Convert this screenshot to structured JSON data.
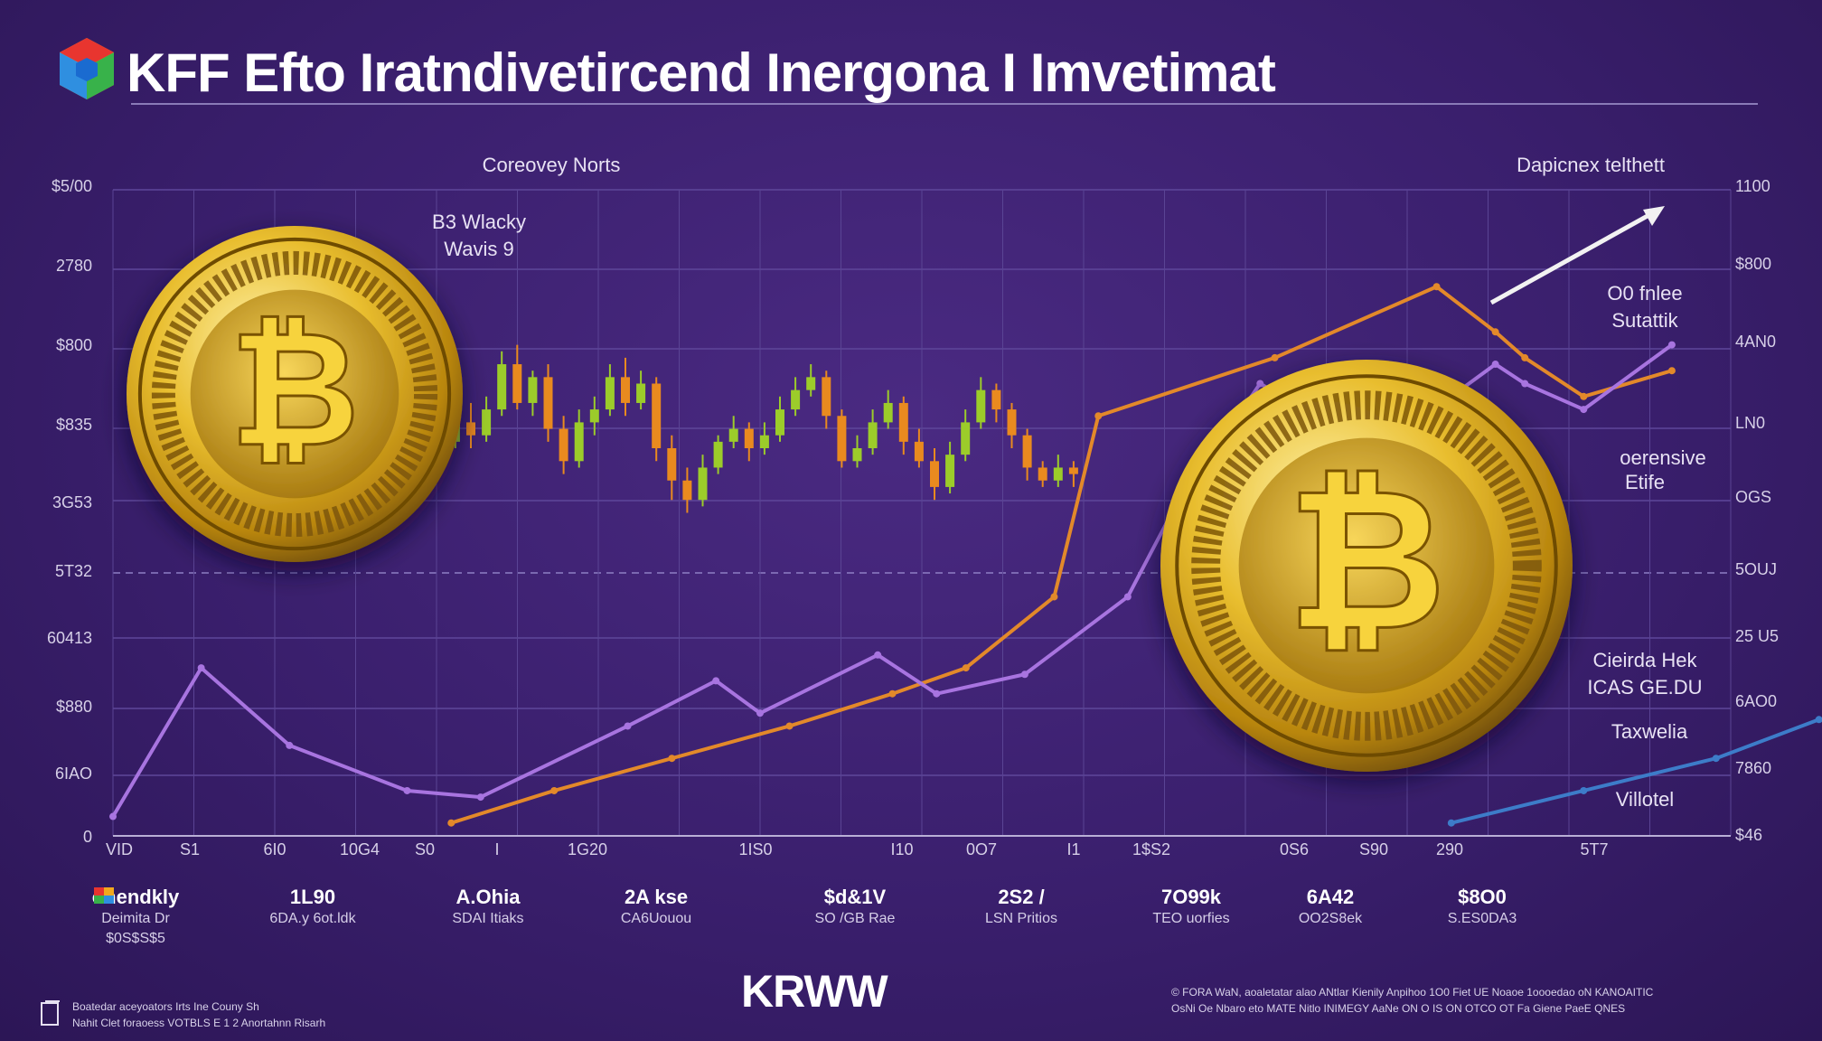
{
  "header": {
    "title": "KFF Efto Iratndivetircend Inergona I Imvetimat"
  },
  "labels": {
    "top_left": "Coreovey Norts",
    "top_right": "Dapicnex telthett",
    "upper_left_a": "B3 Wlacky",
    "upper_left_b": "Wavis 9",
    "right_a1": "O0 fnlee",
    "right_a2": "Sutattik",
    "right_b1": "oerensive",
    "right_b2": "Etife",
    "right_c1": "Cieirda Hek",
    "right_c2": "ICAS GE.DU",
    "right_d": "Taxwelia",
    "right_e": "Villotel"
  },
  "axes": {
    "left_ticks": [
      "$5/00",
      "2780",
      "$800",
      "$835",
      "3G53",
      "5T32",
      "60413",
      "$880",
      "6IAO",
      "0"
    ],
    "right_ticks": [
      "1100",
      "$800",
      "4AN0",
      "LN0",
      "OGS",
      "5OUJ",
      "25 U5",
      "6AO0",
      "7860",
      "$46"
    ],
    "x_ticks": [
      "VID",
      "S1",
      "6I0",
      "10G4",
      "S0",
      "I",
      "1G20",
      "1IS0",
      "I10",
      "0O7",
      "I1",
      "1$S2",
      "0S6",
      "S90",
      "290",
      "5T7"
    ]
  },
  "stats": [
    {
      "value": "onendkly",
      "sub1": "Deimita Dr",
      "sub2": "$0S$S$5"
    },
    {
      "value": "1L90",
      "sub1": "6DA.y 6ot.ldk",
      "sub2": ""
    },
    {
      "value": "A.Ohia",
      "sub1": "SDAI Itiaks",
      "sub2": ""
    },
    {
      "value": "2A kse",
      "sub1": "CA6Uouou",
      "sub2": ""
    },
    {
      "value": "$d&1V",
      "sub1": "SO /GB Rae",
      "sub2": ""
    },
    {
      "value": "2S2 /",
      "sub1": "LSN Pritios",
      "sub2": ""
    },
    {
      "value": "7O99k",
      "sub1": "TEO uorfies",
      "sub2": ""
    },
    {
      "value": "6A42",
      "sub1": "OO2S8ek",
      "sub2": ""
    },
    {
      "value": "$8O0",
      "sub1": "S.ES0DA3",
      "sub2": ""
    }
  ],
  "footer": {
    "brand": "KRWW",
    "left_line1": "Boatedar aceyoators Irts Ine Couny Sh",
    "left_line2": "Nahit Clet foraoess VOTBLS E 1 2 Anortahnn Risarh",
    "right_line1": "© FORA WaN, aoaletatar alao ANtlar Kienily Anpihoo 1O0 Fiet UE Noaoe 1oooedao oN KANOAITIC",
    "right_line2": "OsNi Oe Nbaro eto MATE Nitlo INIMEGY AaNe ON O IS ON OTCO OT Fa Giene PaeE QNES"
  },
  "colors": {
    "background": "#3a1f6d",
    "orange_series": "#e3892a",
    "purple_series": "#a874e0",
    "blue_series": "#3d7cc9",
    "coin_gold": "#e3b82c",
    "candle_up": "#9ccc2a",
    "candle_down": "#e98a1f"
  },
  "chart_data": {
    "type": "line",
    "title": "KFF Efto Iratndivetircend Inergona I Imvetimat",
    "xlabel": "",
    "ylabel": "",
    "ylim": [
      0,
      100
    ],
    "x": [
      0,
      1,
      2,
      3,
      4,
      5,
      6,
      7,
      8,
      9,
      10,
      11,
      12,
      13,
      14,
      15,
      16,
      17,
      18,
      19,
      20,
      21,
      22,
      23,
      24,
      25,
      26,
      27,
      28,
      29,
      30,
      31,
      32,
      33,
      34,
      35,
      36,
      37,
      38,
      39,
      40,
      41,
      42,
      43,
      44,
      45,
      46,
      47,
      48,
      49,
      50,
      51,
      52,
      53,
      54,
      55,
      56,
      57,
      58,
      59,
      60,
      61,
      62,
      63,
      64,
      65,
      66,
      67,
      68,
      69,
      70,
      71,
      72,
      73,
      74,
      75,
      76,
      77,
      78,
      79,
      80,
      81,
      82,
      83,
      84,
      85,
      86,
      87,
      88,
      89,
      90,
      91,
      92,
      93,
      94,
      95,
      96,
      97,
      98,
      99,
      100
    ],
    "series": [
      {
        "name": "",
        "points": [
          [
            23,
            2
          ],
          [
            30,
            7
          ],
          [
            38,
            12
          ],
          [
            46,
            17
          ],
          [
            53,
            22
          ],
          [
            58,
            26
          ],
          [
            64,
            37
          ],
          [
            67,
            65
          ],
          [
            79,
            74
          ],
          [
            90,
            85
          ],
          [
            94,
            78
          ],
          [
            96,
            74
          ],
          [
            100,
            68
          ],
          [
            106,
            72
          ]
        ]
      },
      {
        "name": "",
        "points": [
          [
            0,
            3
          ],
          [
            6,
            26
          ],
          [
            12,
            14
          ],
          [
            20,
            7
          ],
          [
            25,
            6
          ],
          [
            35,
            17
          ],
          [
            41,
            24
          ],
          [
            44,
            19
          ],
          [
            52,
            28
          ],
          [
            56,
            22
          ],
          [
            62,
            25
          ],
          [
            69,
            37
          ],
          [
            72,
            50
          ],
          [
            75,
            60
          ],
          [
            78,
            70
          ],
          [
            81,
            66
          ],
          [
            84,
            68
          ],
          [
            88,
            63
          ],
          [
            94,
            73
          ],
          [
            96,
            70
          ],
          [
            100,
            66
          ],
          [
            106,
            76
          ]
        ]
      },
      {
        "name": "",
        "points": [
          [
            74,
            40
          ],
          [
            78,
            35
          ],
          [
            84,
            42
          ],
          [
            87,
            38
          ]
        ]
      },
      {
        "name": "",
        "points": [
          [
            91,
            2
          ],
          [
            100,
            7
          ],
          [
            109,
            12
          ],
          [
            116,
            18
          ]
        ]
      }
    ],
    "candles": [
      [
        11,
        49,
        52,
        47,
        53
      ],
      [
        12,
        51,
        50,
        48,
        53
      ],
      [
        13,
        50,
        52,
        49,
        54
      ],
      [
        14,
        52,
        51,
        49,
        54
      ],
      [
        15,
        51,
        53,
        50,
        55
      ],
      [
        16,
        53,
        52,
        50,
        55
      ],
      [
        17,
        52,
        55,
        51,
        56
      ],
      [
        18,
        55,
        58,
        54,
        59
      ],
      [
        19,
        58,
        61,
        57,
        63
      ],
      [
        20,
        61,
        64,
        60,
        66
      ],
      [
        21,
        64,
        62,
        60,
        67
      ],
      [
        22,
        62,
        66,
        61,
        68
      ],
      [
        23,
        66,
        73,
        65,
        75
      ],
      [
        24,
        73,
        67,
        66,
        76
      ],
      [
        25,
        67,
        71,
        65,
        72
      ],
      [
        26,
        71,
        63,
        61,
        73
      ],
      [
        27,
        63,
        58,
        56,
        65
      ],
      [
        28,
        58,
        64,
        57,
        66
      ],
      [
        29,
        64,
        66,
        62,
        68
      ],
      [
        30,
        66,
        71,
        65,
        73
      ],
      [
        31,
        71,
        67,
        65,
        74
      ],
      [
        32,
        67,
        70,
        66,
        72
      ],
      [
        33,
        70,
        60,
        58,
        71
      ],
      [
        34,
        60,
        55,
        52,
        62
      ],
      [
        35,
        55,
        52,
        50,
        57
      ],
      [
        36,
        52,
        57,
        51,
        59
      ],
      [
        37,
        57,
        61,
        56,
        62
      ],
      [
        38,
        61,
        63,
        60,
        65
      ],
      [
        39,
        63,
        60,
        58,
        64
      ],
      [
        40,
        60,
        62,
        59,
        64
      ],
      [
        41,
        62,
        66,
        61,
        68
      ],
      [
        42,
        66,
        69,
        65,
        71
      ],
      [
        43,
        69,
        71,
        68,
        73
      ],
      [
        44,
        71,
        65,
        63,
        72
      ],
      [
        45,
        65,
        58,
        57,
        66
      ],
      [
        46,
        58,
        60,
        57,
        62
      ],
      [
        47,
        60,
        64,
        59,
        66
      ],
      [
        48,
        64,
        67,
        63,
        69
      ],
      [
        49,
        67,
        61,
        59,
        68
      ],
      [
        50,
        61,
        58,
        57,
        63
      ],
      [
        51,
        58,
        54,
        52,
        60
      ],
      [
        52,
        54,
        59,
        53,
        61
      ],
      [
        53,
        59,
        64,
        58,
        66
      ],
      [
        54,
        64,
        69,
        63,
        71
      ],
      [
        55,
        69,
        66,
        64,
        70
      ],
      [
        56,
        66,
        62,
        60,
        67
      ],
      [
        57,
        62,
        57,
        55,
        63
      ],
      [
        58,
        57,
        55,
        54,
        58
      ],
      [
        59,
        55,
        57,
        54,
        59
      ],
      [
        60,
        57,
        56,
        54,
        58
      ]
    ]
  }
}
